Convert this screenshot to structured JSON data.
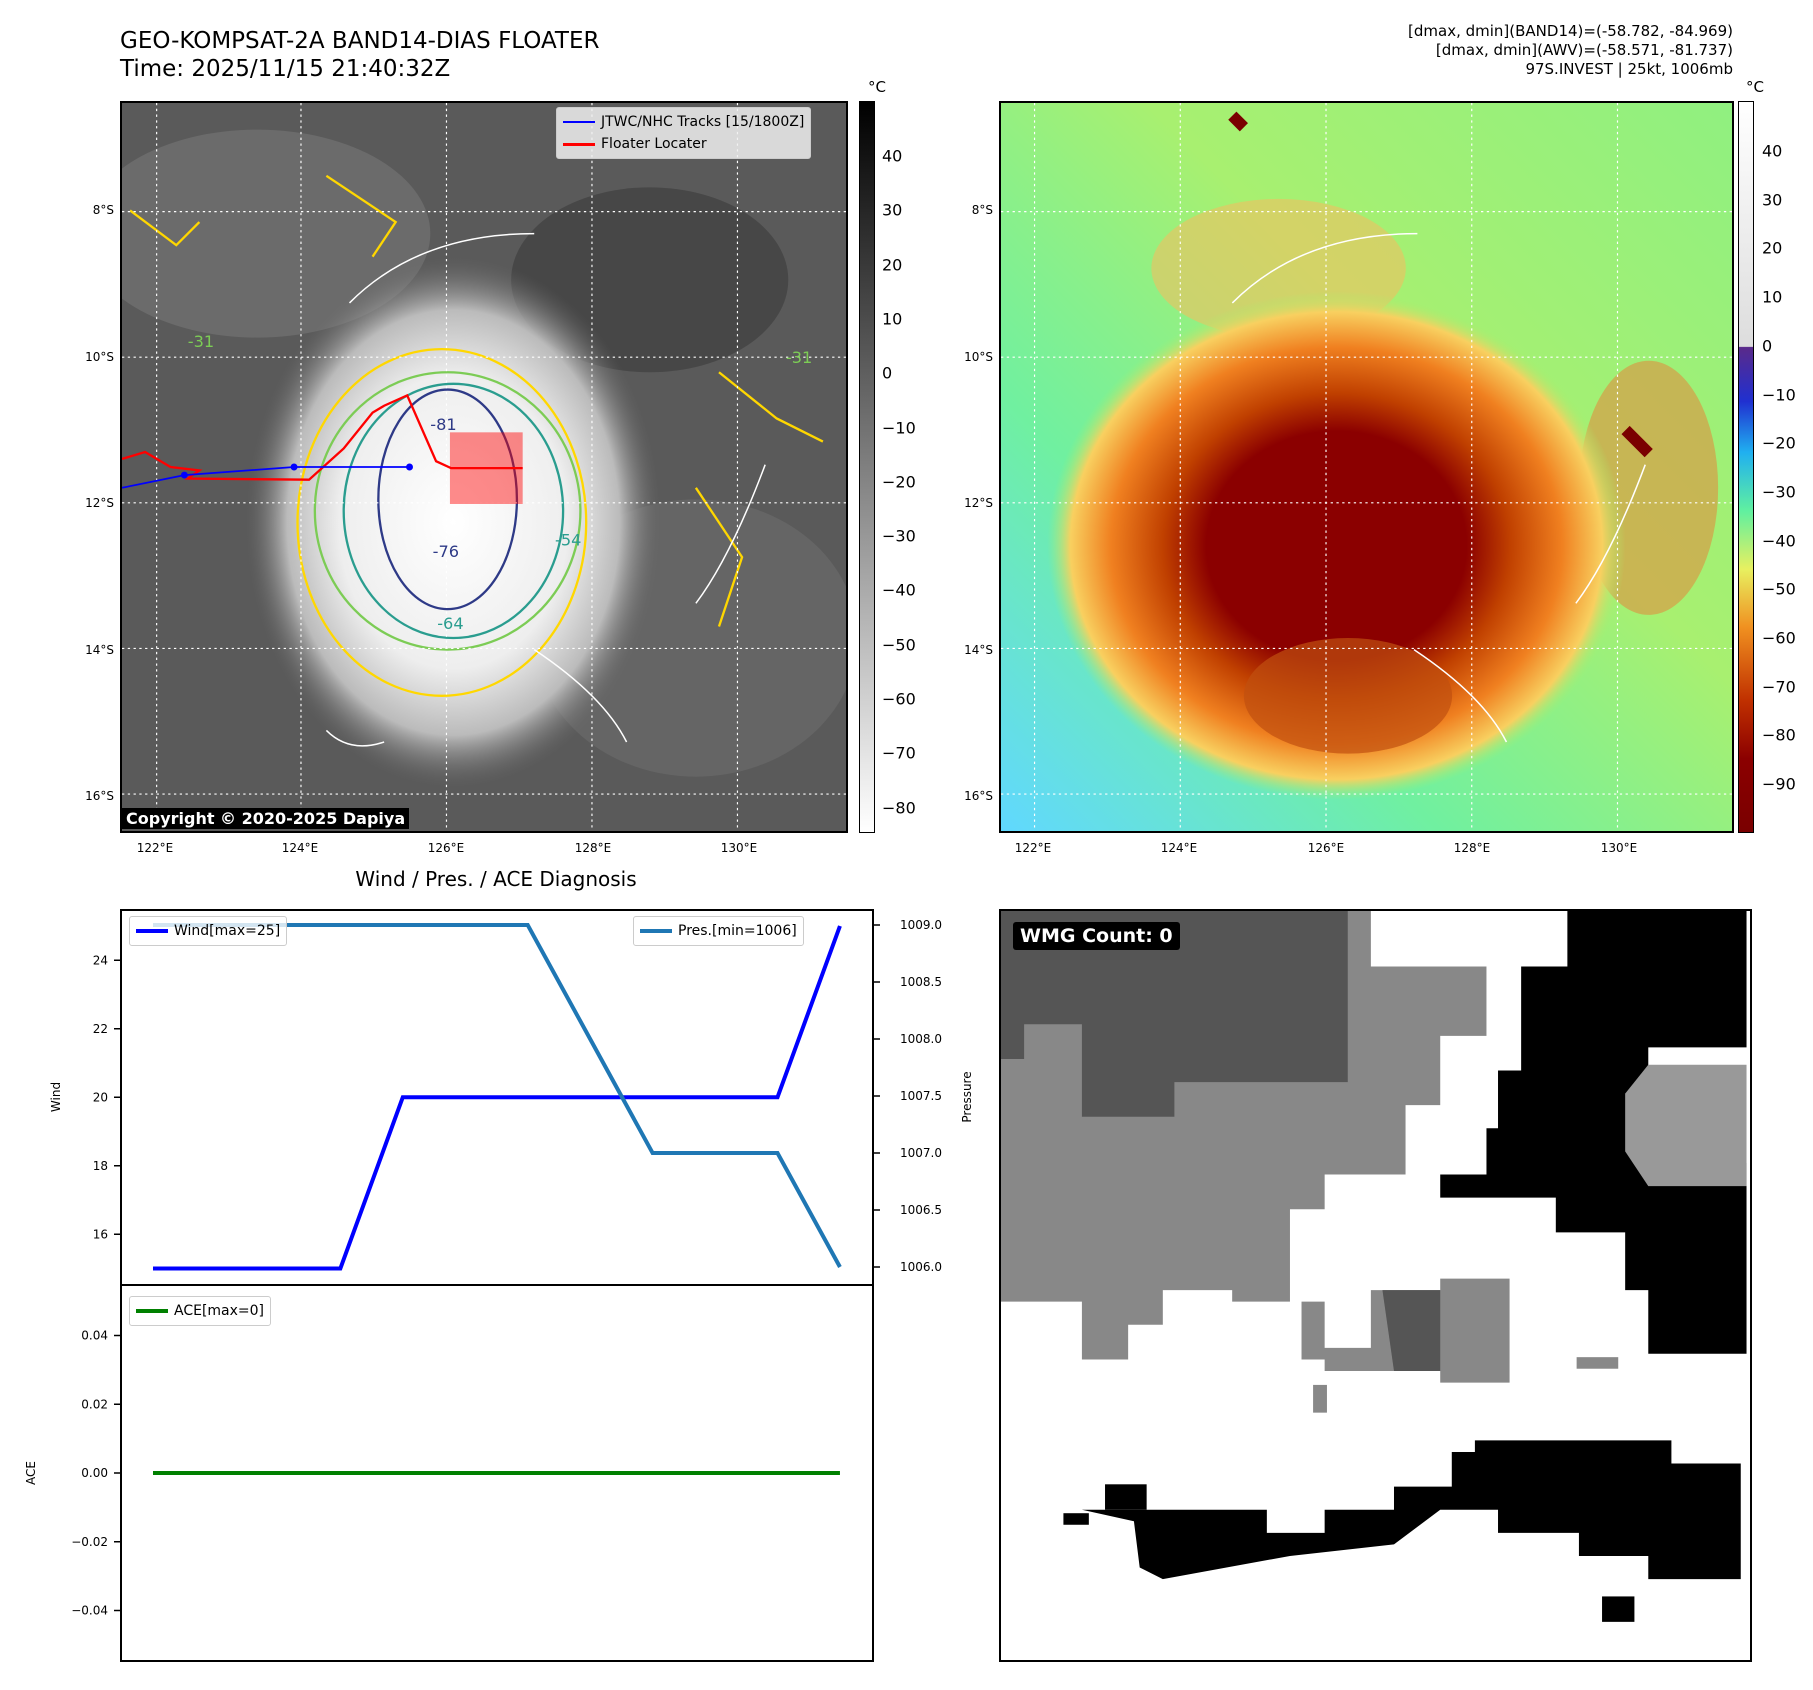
{
  "header": {
    "title_line1": "GEO-KOMPSAT-2A BAND14-DIAS FLOATER",
    "title_line2": "Time: 2025/11/15 21:40:32Z",
    "info_line1": "[dmax, dmin](BAND14)=(-58.782, -84.969)",
    "info_line2": "[dmax, dmin](AWV)=(-58.571, -81.737)",
    "info_line3": "97S.INVEST | 25kt, 1006mb"
  },
  "map": {
    "lon_ticks": [
      "122°E",
      "124°E",
      "126°E",
      "128°E",
      "130°E"
    ],
    "lat_ticks": [
      "8°S",
      "10°S",
      "12°S",
      "14°S",
      "16°S"
    ],
    "legend_tracks": "JTWC/NHC Tracks [15/1800Z]",
    "legend_floater": "Floater Locater",
    "copyright": "Copyright © 2020-2025 Dapiya",
    "contour_labels": [
      "-81",
      "-76",
      "-64",
      "-54",
      "-31",
      "-31"
    ],
    "unit": "°C",
    "cbar_left": [
      "40",
      "30",
      "20",
      "10",
      "0",
      "−10",
      "−20",
      "−30",
      "−40",
      "−50",
      "−60",
      "−70",
      "−80"
    ],
    "cbar_right": [
      "40",
      "30",
      "20",
      "10",
      "0",
      "−10",
      "−20",
      "−30",
      "−40",
      "−50",
      "−60",
      "−70",
      "−80",
      "−90"
    ]
  },
  "diag": {
    "title": "Wind / Pres. / ACE Diagnosis",
    "wind_label": "Wind",
    "pressure_label": "Pressure",
    "ace_label": "ACE",
    "wind_legend": "Wind[max=25]",
    "pres_legend": "Pres.[min=1006]",
    "ace_legend": "ACE[max=0]",
    "wmg": "WMG Count: 0"
  },
  "colors": {
    "wind": "#0000ff",
    "pressure": "#1f77b4",
    "ace": "#008000",
    "track": "#0000ff",
    "floater": "#ff0000"
  },
  "chart_data": [
    {
      "type": "line",
      "title": "Wind / Pres. / ACE Diagnosis",
      "x": [
        0,
        1,
        2,
        3,
        4,
        5,
        6,
        7,
        8,
        9,
        10,
        11
      ],
      "series": [
        {
          "name": "Wind[max=25]",
          "axis": "left",
          "values": [
            15,
            15,
            15,
            15,
            20,
            20,
            20,
            20,
            20,
            20,
            20,
            25
          ]
        },
        {
          "name": "Pres.[min=1006]",
          "axis": "right",
          "values": [
            1009,
            1009,
            1009,
            1009,
            1009,
            1009,
            1009,
            1008,
            1007,
            1007,
            1007,
            1006
          ]
        }
      ],
      "ylabel": "Wind",
      "ylabel_right": "Pressure",
      "yticks": [
        "16",
        "18",
        "20",
        "22",
        "24"
      ],
      "yticks_right": [
        "1006.0",
        "1006.5",
        "1007.0",
        "1007.5",
        "1008.0",
        "1008.5",
        "1009.0"
      ],
      "ylim": [
        14.6,
        25.5
      ],
      "ylim_right": [
        1005.9,
        1009.1
      ]
    },
    {
      "type": "line",
      "x": [
        0,
        1,
        2,
        3,
        4,
        5,
        6,
        7,
        8,
        9,
        10,
        11
      ],
      "series": [
        {
          "name": "ACE[max=0]",
          "values": [
            0,
            0,
            0,
            0,
            0,
            0,
            0,
            0,
            0,
            0,
            0,
            0
          ]
        }
      ],
      "ylabel": "ACE",
      "yticks": [
        "0.04",
        "0.02",
        "0.00",
        "−0.02",
        "−0.04"
      ],
      "ylim": [
        -0.055,
        0.055
      ]
    }
  ]
}
